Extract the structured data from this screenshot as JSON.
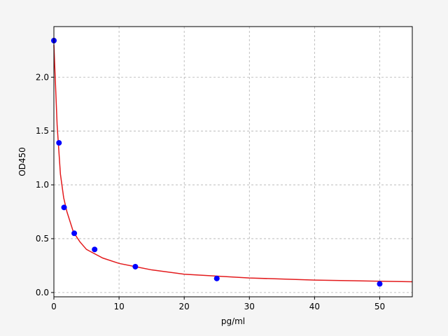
{
  "chart_data": {
    "type": "scatter",
    "xlabel": "pg/ml",
    "ylabel": "OD450",
    "xlim": [
      0,
      55
    ],
    "ylim": [
      -0.04,
      2.47
    ],
    "xticks": [
      0,
      10,
      20,
      30,
      40,
      50
    ],
    "yticks": [
      {
        "value": 0,
        "label": "0.0"
      },
      0.5,
      {
        "value": 1,
        "label": "1.0"
      },
      1.5,
      {
        "value": 2,
        "label": "2.0"
      }
    ],
    "grid": true,
    "series": [
      {
        "style": "marker",
        "color": "#0000ff",
        "x": [
          0,
          0.78,
          1.56,
          3.125,
          6.25,
          12.5,
          25,
          50
        ],
        "values": [
          2.34,
          1.39,
          0.79,
          0.55,
          0.4,
          0.24,
          0.13,
          0.08
        ]
      },
      {
        "style": "line",
        "color": "#e31a1c",
        "x": [
          0,
          0.5,
          1,
          1.5,
          2,
          3,
          4,
          5,
          7.5,
          10,
          15,
          20,
          30,
          40,
          50,
          55
        ],
        "values": [
          2.3,
          1.55,
          1.1,
          0.88,
          0.75,
          0.56,
          0.47,
          0.4,
          0.32,
          0.27,
          0.21,
          0.17,
          0.135,
          0.115,
          0.105,
          0.1
        ]
      }
    ]
  }
}
